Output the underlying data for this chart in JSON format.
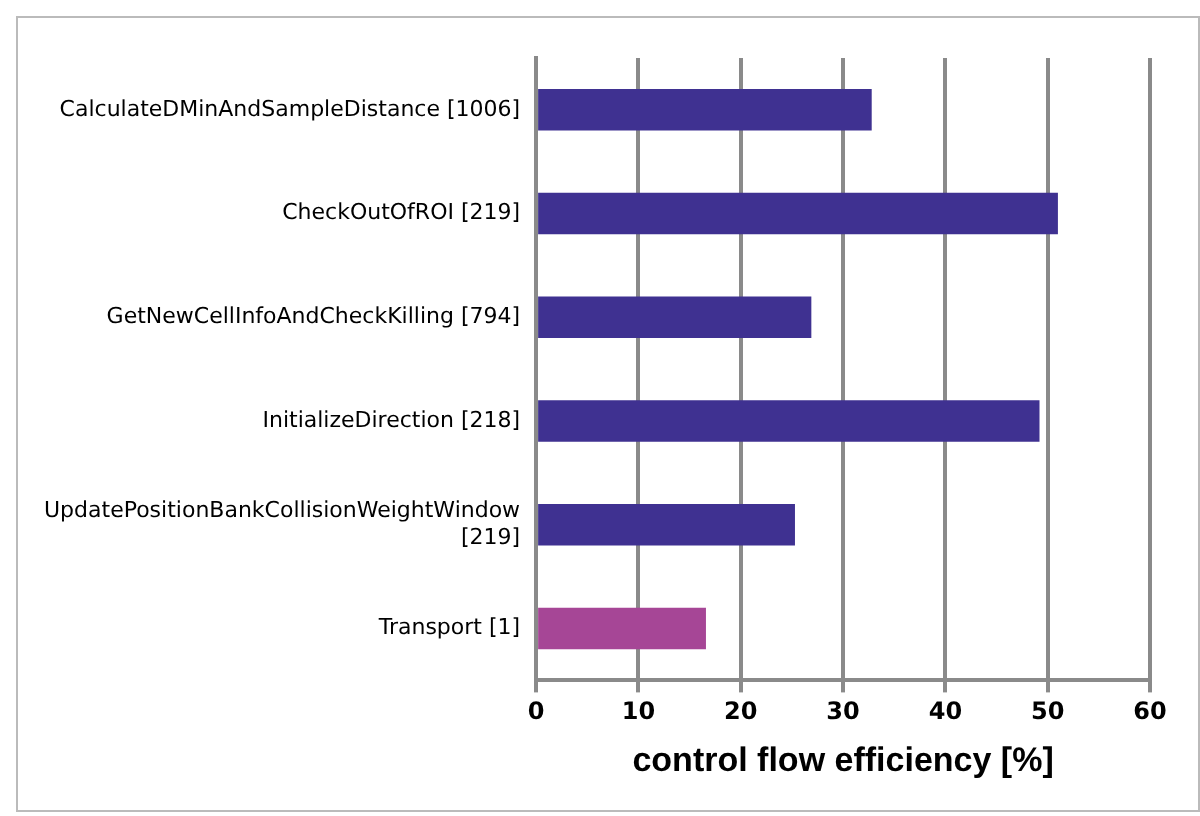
{
  "chart_data": {
    "type": "bar",
    "orientation": "horizontal",
    "xlabel": "control flow efficiency [%]",
    "categories": [
      "CalculateDMinAndSampleDistance [1006]",
      "CheckOutOfROI [219]",
      "GetNewCellInfoAndCheckKilling [794]",
      "InitializeDirection [218]",
      "UpdatePositionBankCollisionWeightWindow [219]",
      "Transport [1]"
    ],
    "values": [
      32.8,
      51.0,
      26.9,
      49.2,
      25.3,
      16.6
    ],
    "colors": [
      "#3f3191",
      "#3f3191",
      "#3f3191",
      "#3f3191",
      "#3f3191",
      "#a64696"
    ],
    "xlim": [
      0,
      60
    ],
    "xticks": [
      0,
      10,
      20,
      30,
      40,
      50,
      60
    ],
    "grid": "x",
    "legend": false
  }
}
